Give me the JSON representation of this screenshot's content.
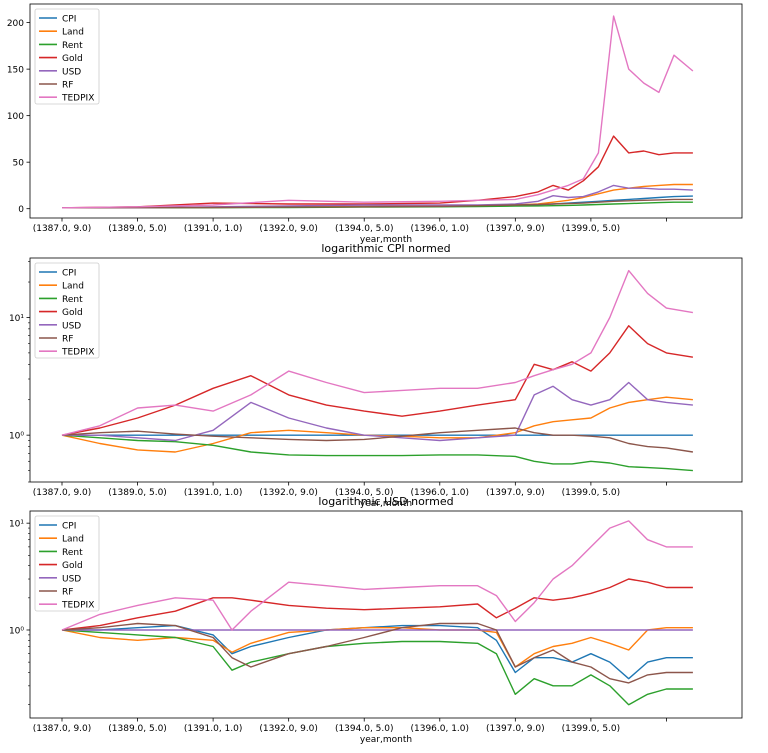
{
  "figure": {
    "xlabel": "year,month",
    "xtick_labels": [
      "(1387.0, 9.0)",
      "(1389.0, 5.0)",
      "(1391.0, 1.0)",
      "(1392.0, 9.0)",
      "(1394.0, 5.0)",
      "(1396.0, 1.0)",
      "(1397.0, 9.0)",
      "(1399.0, 5.0)"
    ],
    "series_names": [
      "CPI",
      "Land",
      "Rent",
      "Gold",
      "USD",
      "RF",
      "TEDPIX"
    ],
    "colors": [
      "#1f77b4",
      "#ff7f0e",
      "#2ca02c",
      "#d62728",
      "#9467bd",
      "#8c564b",
      "#e377c2"
    ]
  },
  "chart_data": [
    {
      "type": "line",
      "title": "",
      "xlabel": "year,month",
      "ylabel": "",
      "yscale": "linear",
      "ylim": [
        -10,
        220
      ],
      "yticks": [
        0,
        50,
        100,
        150,
        200
      ],
      "ytick_labels": [
        "0",
        "50",
        "100",
        "150",
        "200"
      ],
      "legend": "upper-left",
      "x_months": [
        0,
        20,
        40,
        60,
        80,
        100,
        110,
        120,
        126,
        130,
        134,
        138,
        142,
        146,
        150,
        154,
        158,
        162,
        167
      ],
      "series": [
        {
          "name": "CPI",
          "values": [
            1,
            1.2,
            1.5,
            2,
            2.5,
            3,
            3.3,
            3.8,
            4.2,
            5,
            6,
            7,
            8,
            9,
            10,
            11,
            12,
            13,
            13.5
          ]
        },
        {
          "name": "Land",
          "values": [
            1,
            1,
            1.2,
            2,
            2.5,
            3,
            3.3,
            4,
            5,
            7,
            9,
            12,
            16,
            20,
            22,
            24,
            25,
            26,
            26
          ]
        },
        {
          "name": "Rent",
          "values": [
            1,
            1,
            1.1,
            1.3,
            1.7,
            2,
            2.3,
            2.8,
            3,
            3.2,
            3.5,
            4,
            4.5,
            5,
            5.5,
            6,
            6.5,
            7,
            7
          ]
        },
        {
          "name": "Gold",
          "values": [
            1,
            2,
            6,
            5,
            5,
            6,
            9,
            13,
            18,
            25,
            20,
            30,
            45,
            78,
            60,
            62,
            58,
            60,
            60
          ]
        },
        {
          "name": "USD",
          "values": [
            1,
            1,
            2,
            3,
            4,
            4,
            4,
            5,
            8,
            14,
            12,
            13,
            18,
            25,
            22,
            22,
            21,
            21,
            20
          ]
        },
        {
          "name": "RF",
          "values": [
            1,
            1.1,
            1.3,
            1.7,
            2,
            2.5,
            3.2,
            4,
            4.5,
            5,
            5.5,
            6,
            7,
            8,
            8.5,
            9,
            9.5,
            10,
            10
          ]
        },
        {
          "name": "TEDPIX",
          "values": [
            1,
            2,
            4,
            9,
            7,
            8,
            9,
            10,
            15,
            20,
            25,
            32,
            60,
            207,
            150,
            135,
            125,
            165,
            148
          ]
        }
      ]
    },
    {
      "type": "line",
      "title": "logarithmic CPI normed",
      "xlabel": "year,month",
      "ylabel": "",
      "yscale": "log",
      "ylim": [
        0.4,
        32
      ],
      "yticks": [
        1,
        10
      ],
      "ytick_labels": [
        "10⁰",
        "10¹"
      ],
      "legend": "upper-left",
      "x_months": [
        0,
        10,
        20,
        30,
        40,
        50,
        60,
        70,
        80,
        90,
        100,
        110,
        120,
        125,
        130,
        135,
        140,
        145,
        150,
        155,
        160,
        167
      ],
      "series": [
        {
          "name": "CPI",
          "values": [
            1,
            1,
            1,
            1,
            1,
            1,
            1,
            1,
            1,
            1,
            1,
            1,
            1,
            1,
            1,
            1,
            1,
            1,
            1,
            1,
            1,
            1
          ]
        },
        {
          "name": "Land",
          "values": [
            1,
            0.85,
            0.75,
            0.72,
            0.85,
            1.05,
            1.1,
            1.05,
            1.0,
            0.98,
            0.95,
            0.95,
            1.05,
            1.2,
            1.3,
            1.35,
            1.4,
            1.7,
            1.9,
            2.0,
            2.1,
            2.0
          ]
        },
        {
          "name": "Rent",
          "values": [
            1,
            0.95,
            0.9,
            0.88,
            0.82,
            0.72,
            0.68,
            0.67,
            0.67,
            0.67,
            0.68,
            0.68,
            0.66,
            0.6,
            0.57,
            0.57,
            0.6,
            0.58,
            0.54,
            0.53,
            0.52,
            0.5
          ]
        },
        {
          "name": "Gold",
          "values": [
            1,
            1.15,
            1.4,
            1.8,
            2.5,
            3.2,
            2.2,
            1.8,
            1.6,
            1.45,
            1.6,
            1.8,
            2.0,
            4.0,
            3.6,
            4.2,
            3.5,
            5.0,
            8.5,
            6.0,
            5.0,
            4.6
          ]
        },
        {
          "name": "USD",
          "values": [
            1,
            1.0,
            0.95,
            0.9,
            1.1,
            1.9,
            1.4,
            1.15,
            1.0,
            0.95,
            0.9,
            0.95,
            1.0,
            2.2,
            2.6,
            2.0,
            1.8,
            2.0,
            2.8,
            2.0,
            1.9,
            1.8
          ]
        },
        {
          "name": "RF",
          "values": [
            1,
            1.05,
            1.08,
            1.02,
            0.98,
            0.95,
            0.92,
            0.9,
            0.92,
            0.98,
            1.05,
            1.1,
            1.15,
            1.05,
            1.0,
            1.0,
            0.98,
            0.95,
            0.85,
            0.8,
            0.78,
            0.72
          ]
        },
        {
          "name": "TEDPIX",
          "values": [
            1,
            1.2,
            1.7,
            1.8,
            1.6,
            2.2,
            3.5,
            2.8,
            2.3,
            2.4,
            2.5,
            2.5,
            2.8,
            3.2,
            3.6,
            4.0,
            5.0,
            10,
            25,
            16,
            12,
            11
          ]
        }
      ]
    },
    {
      "type": "line",
      "title": "logarithmic USD normed",
      "xlabel": "year,month",
      "ylabel": "",
      "yscale": "log",
      "ylim": [
        0.15,
        13
      ],
      "yticks": [
        1,
        10
      ],
      "ytick_labels": [
        "10⁰",
        "10¹"
      ],
      "legend": "upper-left",
      "x_months": [
        0,
        10,
        20,
        30,
        40,
        45,
        50,
        60,
        70,
        80,
        90,
        100,
        110,
        115,
        120,
        125,
        130,
        135,
        140,
        145,
        150,
        155,
        160,
        167
      ],
      "series": [
        {
          "name": "CPI",
          "values": [
            1,
            1.0,
            1.05,
            1.1,
            0.9,
            0.6,
            0.7,
            0.85,
            1.0,
            1.05,
            1.1,
            1.1,
            1.05,
            0.8,
            0.4,
            0.55,
            0.55,
            0.5,
            0.6,
            0.5,
            0.35,
            0.5,
            0.55,
            0.55
          ]
        },
        {
          "name": "Land",
          "values": [
            1,
            0.85,
            0.8,
            0.85,
            0.8,
            0.62,
            0.75,
            0.95,
            1.0,
            1.05,
            1.05,
            1.0,
            1.0,
            0.95,
            0.45,
            0.6,
            0.7,
            0.75,
            0.85,
            0.75,
            0.65,
            1.0,
            1.05,
            1.05
          ]
        },
        {
          "name": "Rent",
          "values": [
            1,
            0.95,
            0.9,
            0.85,
            0.7,
            0.42,
            0.5,
            0.6,
            0.7,
            0.75,
            0.78,
            0.78,
            0.75,
            0.6,
            0.25,
            0.35,
            0.3,
            0.3,
            0.38,
            0.3,
            0.2,
            0.25,
            0.28,
            0.28
          ]
        },
        {
          "name": "Gold",
          "values": [
            1,
            1.1,
            1.3,
            1.5,
            2.0,
            2.0,
            1.9,
            1.7,
            1.6,
            1.55,
            1.6,
            1.65,
            1.75,
            1.3,
            1.6,
            2.0,
            1.9,
            2.0,
            2.2,
            2.5,
            3.0,
            2.8,
            2.5,
            2.5
          ]
        },
        {
          "name": "USD",
          "values": [
            1,
            1,
            1,
            1,
            1,
            1,
            1,
            1,
            1,
            1,
            1,
            1,
            1,
            1,
            1,
            1,
            1,
            1,
            1,
            1,
            1,
            1,
            1,
            1
          ]
        },
        {
          "name": "RF",
          "values": [
            1,
            1.05,
            1.15,
            1.1,
            0.85,
            0.55,
            0.45,
            0.6,
            0.7,
            0.85,
            1.05,
            1.15,
            1.15,
            1.0,
            0.45,
            0.55,
            0.65,
            0.5,
            0.45,
            0.35,
            0.32,
            0.38,
            0.4,
            0.4
          ]
        },
        {
          "name": "TEDPIX",
          "values": [
            1,
            1.4,
            1.7,
            2.0,
            1.9,
            1.0,
            1.5,
            2.8,
            2.6,
            2.4,
            2.5,
            2.6,
            2.6,
            2.1,
            1.2,
            1.8,
            3.0,
            4.0,
            6.0,
            9.0,
            10.5,
            7.0,
            6.0,
            6.0
          ]
        }
      ]
    }
  ]
}
